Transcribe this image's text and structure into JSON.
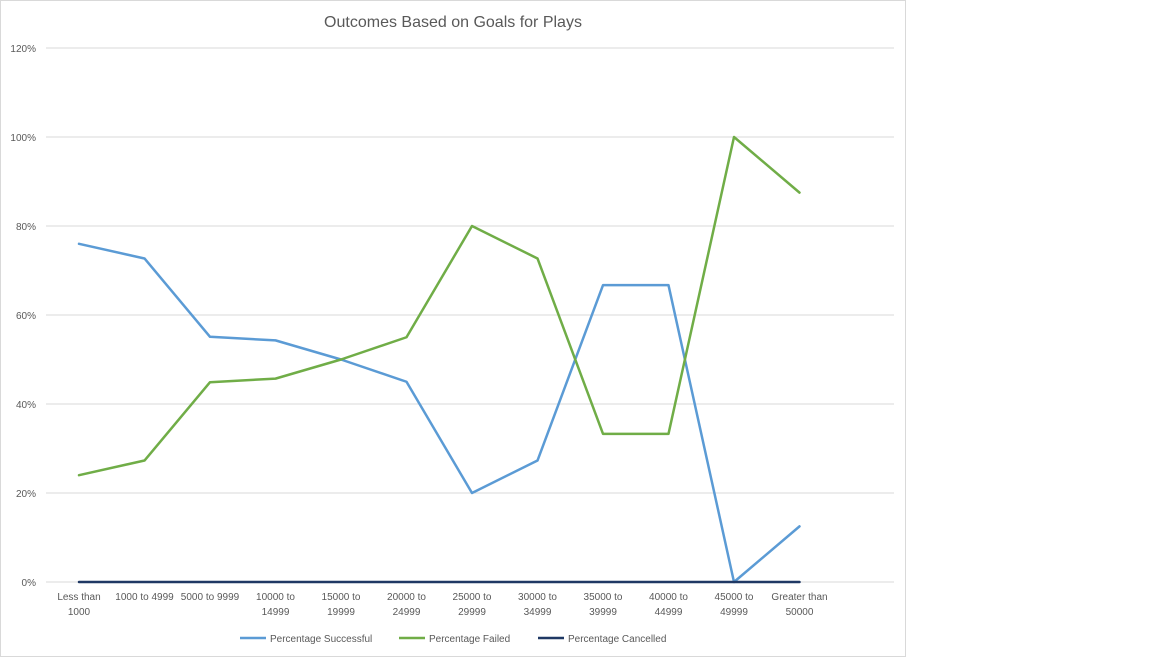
{
  "chart_data": {
    "type": "line",
    "title": "Outcomes Based on Goals for Plays",
    "xlabel": "",
    "ylabel": "",
    "categories": [
      [
        "Less than",
        "1000"
      ],
      [
        "1000 to 4999"
      ],
      [
        "5000 to 9999"
      ],
      [
        "10000 to",
        "14999"
      ],
      [
        "15000 to",
        "19999"
      ],
      [
        "20000 to",
        "24999"
      ],
      [
        "25000 to",
        "29999"
      ],
      [
        "30000 to",
        "34999"
      ],
      [
        "35000 to",
        "39999"
      ],
      [
        "40000 to",
        "44999"
      ],
      [
        "45000 to",
        "49999"
      ],
      [
        "Greater than",
        "50000"
      ]
    ],
    "yticks": [
      "0%",
      "20%",
      "40%",
      "60%",
      "80%",
      "100%",
      "120%"
    ],
    "ylim": [
      0,
      1.2
    ],
    "ytick_step": 0.2,
    "grid": true,
    "legend_position": "bottom",
    "series": [
      {
        "name": "Percentage Successful",
        "color": "#5b9bd5",
        "values": [
          0.76,
          0.727,
          0.551,
          0.543,
          0.5,
          0.45,
          0.2,
          0.273,
          0.667,
          0.667,
          0.0,
          0.125
        ]
      },
      {
        "name": "Percentage Failed",
        "color": "#70ad47",
        "values": [
          0.24,
          0.273,
          0.449,
          0.457,
          0.5,
          0.55,
          0.8,
          0.727,
          0.333,
          0.333,
          1.0,
          0.875
        ]
      },
      {
        "name": "Percentage Cancelled",
        "color": "#1f3864",
        "values": [
          0,
          0,
          0,
          0,
          0,
          0,
          0,
          0,
          0,
          0,
          0,
          0
        ]
      }
    ]
  }
}
